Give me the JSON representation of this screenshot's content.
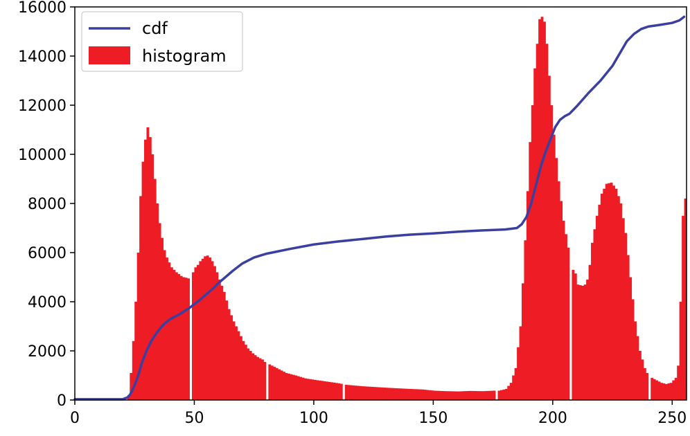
{
  "chart_data": {
    "type": "bar",
    "title": "",
    "xlabel": "",
    "ylabel": "",
    "xlim": [
      0,
      256
    ],
    "ylim": [
      0,
      16000
    ],
    "x_ticks": [
      0,
      50,
      100,
      150,
      200,
      250
    ],
    "y_ticks": [
      0,
      2000,
      4000,
      6000,
      8000,
      10000,
      12000,
      14000,
      16000
    ],
    "grid": false,
    "legend_position": "top-left",
    "histogram_keypoints": [
      [
        0,
        0
      ],
      [
        21,
        0
      ],
      [
        22,
        200
      ],
      [
        23,
        1100
      ],
      [
        24,
        2400
      ],
      [
        25,
        4000
      ],
      [
        26,
        6000
      ],
      [
        27,
        8300
      ],
      [
        28,
        9700
      ],
      [
        29,
        10600
      ],
      [
        30,
        11100
      ],
      [
        31,
        10700
      ],
      [
        32,
        10000
      ],
      [
        33,
        9000
      ],
      [
        34,
        8000
      ],
      [
        35,
        7200
      ],
      [
        36,
        6600
      ],
      [
        37,
        6100
      ],
      [
        38,
        5800
      ],
      [
        39,
        5600
      ],
      [
        40,
        5400
      ],
      [
        42,
        5200
      ],
      [
        44,
        5050
      ],
      [
        45,
        5000
      ],
      [
        46,
        4980
      ],
      [
        47,
        4950
      ],
      [
        48,
        0
      ],
      [
        49,
        5200
      ],
      [
        50,
        5400
      ],
      [
        51,
        5500
      ],
      [
        52,
        5650
      ],
      [
        53,
        5750
      ],
      [
        54,
        5850
      ],
      [
        55,
        5880
      ],
      [
        56,
        5800
      ],
      [
        57,
        5650
      ],
      [
        58,
        5450
      ],
      [
        59,
        5200
      ],
      [
        60,
        4900
      ],
      [
        62,
        4400
      ],
      [
        64,
        3700
      ],
      [
        66,
        3200
      ],
      [
        68,
        2800
      ],
      [
        70,
        2400
      ],
      [
        72,
        2100
      ],
      [
        74,
        1900
      ],
      [
        76,
        1750
      ],
      [
        78,
        1650
      ],
      [
        79,
        1550
      ],
      [
        80,
        0
      ],
      [
        81,
        1450
      ],
      [
        84,
        1300
      ],
      [
        88,
        1100
      ],
      [
        92,
        1000
      ],
      [
        96,
        880
      ],
      [
        100,
        820
      ],
      [
        105,
        750
      ],
      [
        110,
        680
      ],
      [
        111,
        660
      ],
      [
        112,
        0
      ],
      [
        113,
        620
      ],
      [
        120,
        560
      ],
      [
        130,
        500
      ],
      [
        140,
        450
      ],
      [
        145,
        430
      ],
      [
        150,
        380
      ],
      [
        155,
        360
      ],
      [
        160,
        350
      ],
      [
        165,
        370
      ],
      [
        170,
        360
      ],
      [
        175,
        380
      ],
      [
        176,
        0
      ],
      [
        177,
        380
      ],
      [
        180,
        450
      ],
      [
        182,
        700
      ],
      [
        184,
        1300
      ],
      [
        186,
        3000
      ],
      [
        188,
        6500
      ],
      [
        190,
        10500
      ],
      [
        192,
        13500
      ],
      [
        194,
        15500
      ],
      [
        195,
        15600
      ],
      [
        196,
        15400
      ],
      [
        197,
        14500
      ],
      [
        198,
        13200
      ],
      [
        200,
        10800
      ],
      [
        202,
        8900
      ],
      [
        204,
        7300
      ],
      [
        206,
        6200
      ],
      [
        207,
        0
      ],
      [
        208,
        5300
      ],
      [
        209,
        5150
      ],
      [
        210,
        4700
      ],
      [
        212,
        4650
      ],
      [
        213,
        4700
      ],
      [
        214,
        4900
      ],
      [
        215,
        5500
      ],
      [
        216,
        6400
      ],
      [
        218,
        7500
      ],
      [
        220,
        8400
      ],
      [
        222,
        8800
      ],
      [
        224,
        8850
      ],
      [
        226,
        8600
      ],
      [
        228,
        8000
      ],
      [
        230,
        6800
      ],
      [
        232,
        5000
      ],
      [
        234,
        3200
      ],
      [
        236,
        2000
      ],
      [
        238,
        1300
      ],
      [
        239,
        1100
      ],
      [
        240,
        0
      ],
      [
        241,
        900
      ],
      [
        243,
        800
      ],
      [
        245,
        700
      ],
      [
        247,
        650
      ],
      [
        249,
        700
      ],
      [
        251,
        900
      ],
      [
        252,
        1400
      ],
      [
        253,
        4000
      ],
      [
        254,
        7500
      ],
      [
        255,
        8200
      ]
    ],
    "series": [
      {
        "name": "cdf",
        "color": "#3a3fa0",
        "points": [
          [
            0,
            30
          ],
          [
            20,
            30
          ],
          [
            22,
            100
          ],
          [
            23,
            200
          ],
          [
            24,
            380
          ],
          [
            25,
            600
          ],
          [
            26,
            850
          ],
          [
            27,
            1150
          ],
          [
            28,
            1500
          ],
          [
            30,
            2000
          ],
          [
            32,
            2400
          ],
          [
            34,
            2700
          ],
          [
            36,
            2950
          ],
          [
            38,
            3150
          ],
          [
            40,
            3300
          ],
          [
            44,
            3500
          ],
          [
            48,
            3750
          ],
          [
            50,
            3900
          ],
          [
            52,
            4050
          ],
          [
            55,
            4300
          ],
          [
            58,
            4550
          ],
          [
            60,
            4750
          ],
          [
            63,
            5000
          ],
          [
            66,
            5250
          ],
          [
            70,
            5550
          ],
          [
            75,
            5800
          ],
          [
            80,
            5950
          ],
          [
            85,
            6050
          ],
          [
            90,
            6150
          ],
          [
            100,
            6330
          ],
          [
            110,
            6450
          ],
          [
            120,
            6550
          ],
          [
            130,
            6650
          ],
          [
            140,
            6730
          ],
          [
            150,
            6780
          ],
          [
            160,
            6850
          ],
          [
            170,
            6900
          ],
          [
            180,
            6940
          ],
          [
            185,
            7000
          ],
          [
            187,
            7150
          ],
          [
            189,
            7450
          ],
          [
            191,
            8000
          ],
          [
            193,
            8750
          ],
          [
            195,
            9500
          ],
          [
            197,
            10100
          ],
          [
            199,
            10600
          ],
          [
            201,
            11100
          ],
          [
            203,
            11400
          ],
          [
            205,
            11550
          ],
          [
            207,
            11650
          ],
          [
            210,
            11950
          ],
          [
            215,
            12500
          ],
          [
            220,
            13000
          ],
          [
            225,
            13600
          ],
          [
            228,
            14100
          ],
          [
            231,
            14600
          ],
          [
            234,
            14900
          ],
          [
            237,
            15100
          ],
          [
            240,
            15200
          ],
          [
            245,
            15270
          ],
          [
            250,
            15350
          ],
          [
            253,
            15450
          ],
          [
            255,
            15600
          ]
        ]
      },
      {
        "name": "histogram",
        "color": "#ee1c25"
      }
    ]
  }
}
